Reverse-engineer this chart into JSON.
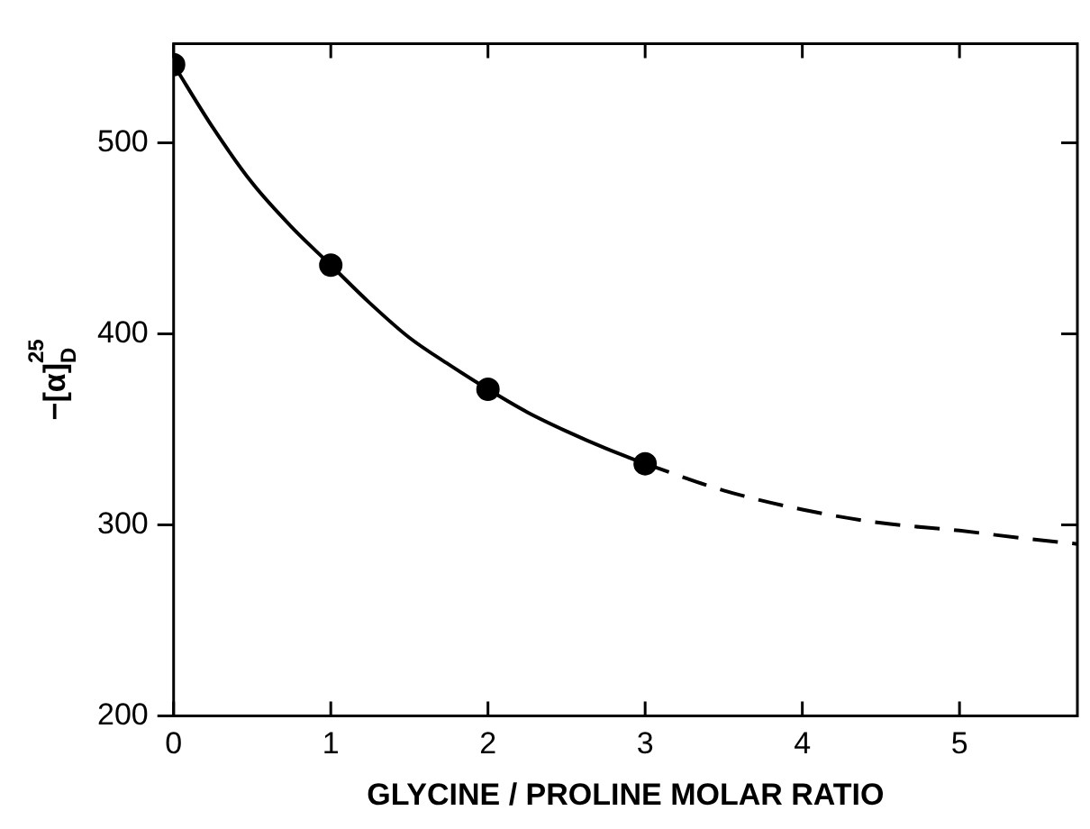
{
  "chart_data": {
    "type": "scatter",
    "xlabel": "GLYCINE / PROLINE MOLAR RATIO",
    "ylabel": "−[α]$_{D}$$^{25}$",
    "xlim": [
      0,
      5.75
    ],
    "ylim": [
      200,
      552
    ],
    "xticks": [
      0,
      1,
      2,
      3,
      4,
      5
    ],
    "yticks": [
      200,
      300,
      400,
      500
    ],
    "grid": false,
    "legend": false,
    "series": [
      {
        "type": "line",
        "color": "#000000",
        "line_style": "solid",
        "marker": "none",
        "x": [
          0,
          0.25,
          0.5,
          0.75,
          1,
          1.25,
          1.5,
          1.75,
          2,
          2.25,
          2.5,
          2.75,
          3
        ],
        "values": [
          541,
          508,
          479,
          456,
          436,
          416,
          398,
          384,
          371,
          359,
          349,
          340,
          332
        ]
      },
      {
        "type": "line",
        "color": "#000000",
        "line_style": "dashed",
        "marker": "none",
        "x": [
          3,
          3.5,
          4,
          4.5,
          5,
          5.4,
          5.75
        ],
        "values": [
          332,
          318,
          308,
          301,
          297,
          293,
          290
        ]
      },
      {
        "color": "#000000",
        "marker": "circle",
        "x": [
          0,
          1,
          2,
          3
        ],
        "values": [
          541,
          436,
          371,
          332
        ]
      }
    ]
  }
}
